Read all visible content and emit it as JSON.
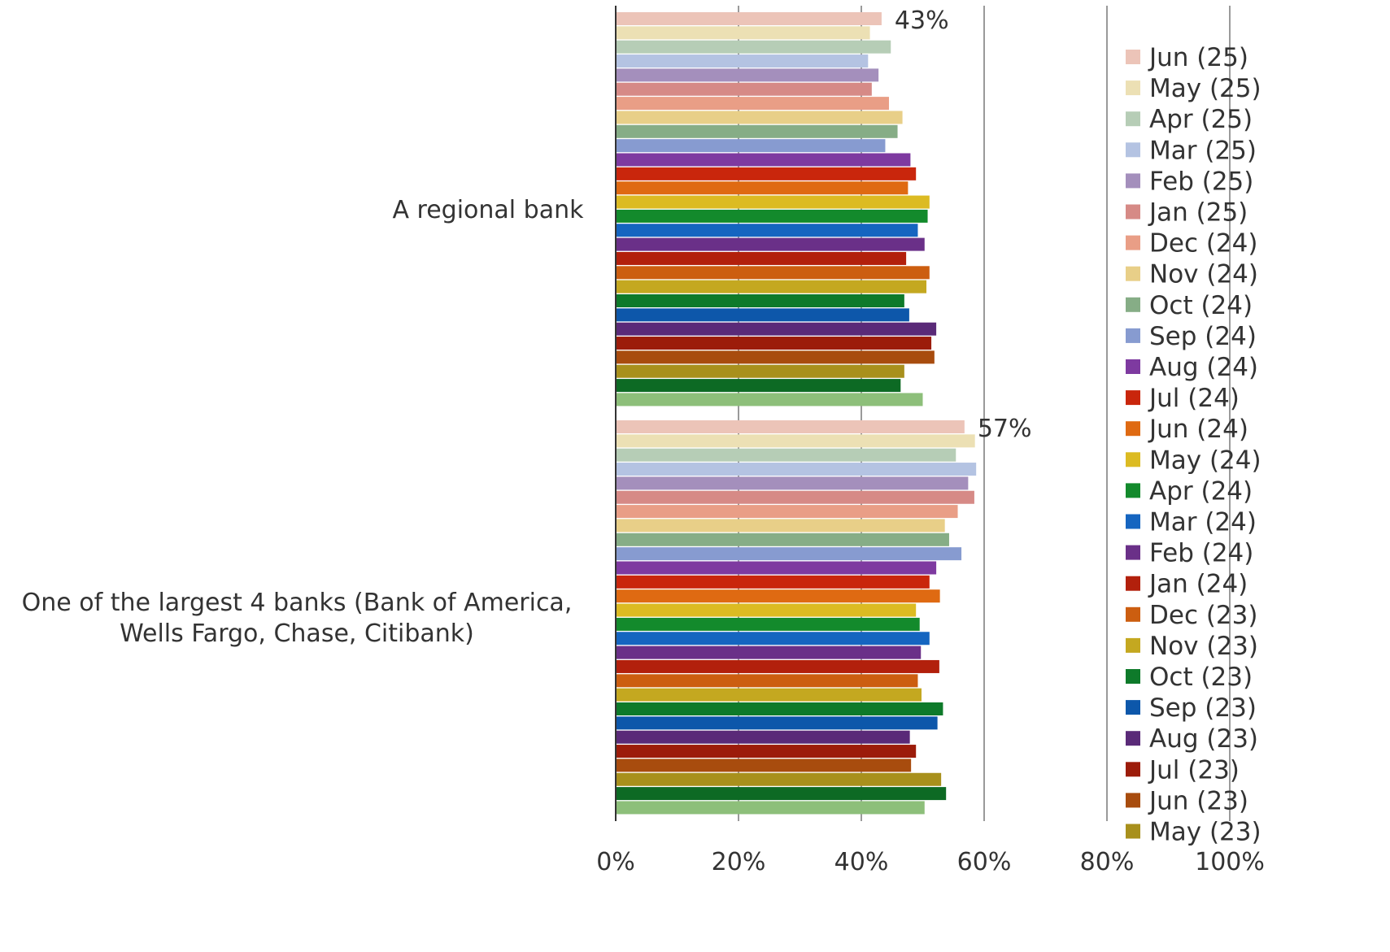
{
  "chart_data": {
    "type": "bar",
    "orientation": "horizontal",
    "title": "",
    "xlabel": "",
    "ylabel": "",
    "xlim": [
      0,
      100
    ],
    "x_ticks": [
      "0%",
      "20%",
      "40%",
      "60%",
      "80%",
      "100%"
    ],
    "grid": true,
    "legend_position": "right",
    "categories": [
      "A regional bank",
      "One of the largest 4 banks (Bank of America, Wells Fargo, Chase, Citibank)"
    ],
    "category_label_lines": [
      [
        "A regional bank"
      ],
      [
        "One of the largest 4 banks (Bank of America,",
        "Wells Fargo, Chase, Citibank)"
      ]
    ],
    "data_labels": [
      "43%",
      "57%"
    ],
    "series": [
      {
        "name": "Jun (25)",
        "color": "#ecc4b8",
        "values": [
          43.3,
          56.8
        ]
      },
      {
        "name": "May (25)",
        "color": "#ece0b4",
        "values": [
          41.4,
          58.5
        ]
      },
      {
        "name": "Apr (25)",
        "color": "#b6cdb6",
        "values": [
          44.8,
          55.4
        ]
      },
      {
        "name": "Mar (25)",
        "color": "#b4c3e2",
        "values": [
          41.1,
          58.7
        ]
      },
      {
        "name": "Feb (25)",
        "color": "#a48fbc",
        "values": [
          42.8,
          57.4
        ]
      },
      {
        "name": "Jan (25)",
        "color": "#d68a86",
        "values": [
          41.7,
          58.4
        ]
      },
      {
        "name": "Dec (24)",
        "color": "#e99e86",
        "values": [
          44.5,
          55.7
        ]
      },
      {
        "name": "Nov (24)",
        "color": "#e8cf88",
        "values": [
          46.7,
          53.6
        ]
      },
      {
        "name": "Oct (24)",
        "color": "#86ad86",
        "values": [
          45.9,
          54.3
        ]
      },
      {
        "name": "Sep (24)",
        "color": "#879bd0",
        "values": [
          43.9,
          56.3
        ]
      },
      {
        "name": "Aug (24)",
        "color": "#7e3aa0",
        "values": [
          48.0,
          52.2
        ]
      },
      {
        "name": "Jul (24)",
        "color": "#c9260c",
        "values": [
          48.9,
          51.1
        ]
      },
      {
        "name": "Jun (24)",
        "color": "#df6a12",
        "values": [
          47.6,
          52.8
        ]
      },
      {
        "name": "May (24)",
        "color": "#dcbb22",
        "values": [
          51.1,
          48.9
        ]
      },
      {
        "name": "Apr (24)",
        "color": "#138a2c",
        "values": [
          50.8,
          49.5
        ]
      },
      {
        "name": "Mar (24)",
        "color": "#1565c0",
        "values": [
          49.2,
          51.1
        ]
      },
      {
        "name": "Feb (24)",
        "color": "#6a3088",
        "values": [
          50.3,
          49.7
        ]
      },
      {
        "name": "Jan (24)",
        "color": "#b2200c",
        "values": [
          47.3,
          52.7
        ]
      },
      {
        "name": "Dec (23)",
        "color": "#cc5e10",
        "values": [
          51.1,
          49.2
        ]
      },
      {
        "name": "Nov (23)",
        "color": "#c4a820",
        "values": [
          50.6,
          49.8
        ]
      },
      {
        "name": "Oct (23)",
        "color": "#0e7a2a",
        "values": [
          47.0,
          53.3
        ]
      },
      {
        "name": "Sep (23)",
        "color": "#0d57aa",
        "values": [
          47.8,
          52.4
        ]
      },
      {
        "name": "Aug (23)",
        "color": "#5a2a78",
        "values": [
          52.2,
          47.9
        ]
      },
      {
        "name": "Jul (23)",
        "color": "#9c1c0a",
        "values": [
          51.4,
          48.9
        ]
      },
      {
        "name": "Jun (23)",
        "color": "#a84c0e",
        "values": [
          51.9,
          48.1
        ]
      },
      {
        "name": "May (23)",
        "color": "#a8901c",
        "values": [
          47.0,
          53.0
        ]
      },
      {
        "name": "",
        "color": "#0d6a24",
        "values": [
          46.4,
          53.8
        ]
      },
      {
        "name": "",
        "color": "#8dbf7a",
        "values": [
          50.0,
          50.3
        ]
      }
    ]
  }
}
